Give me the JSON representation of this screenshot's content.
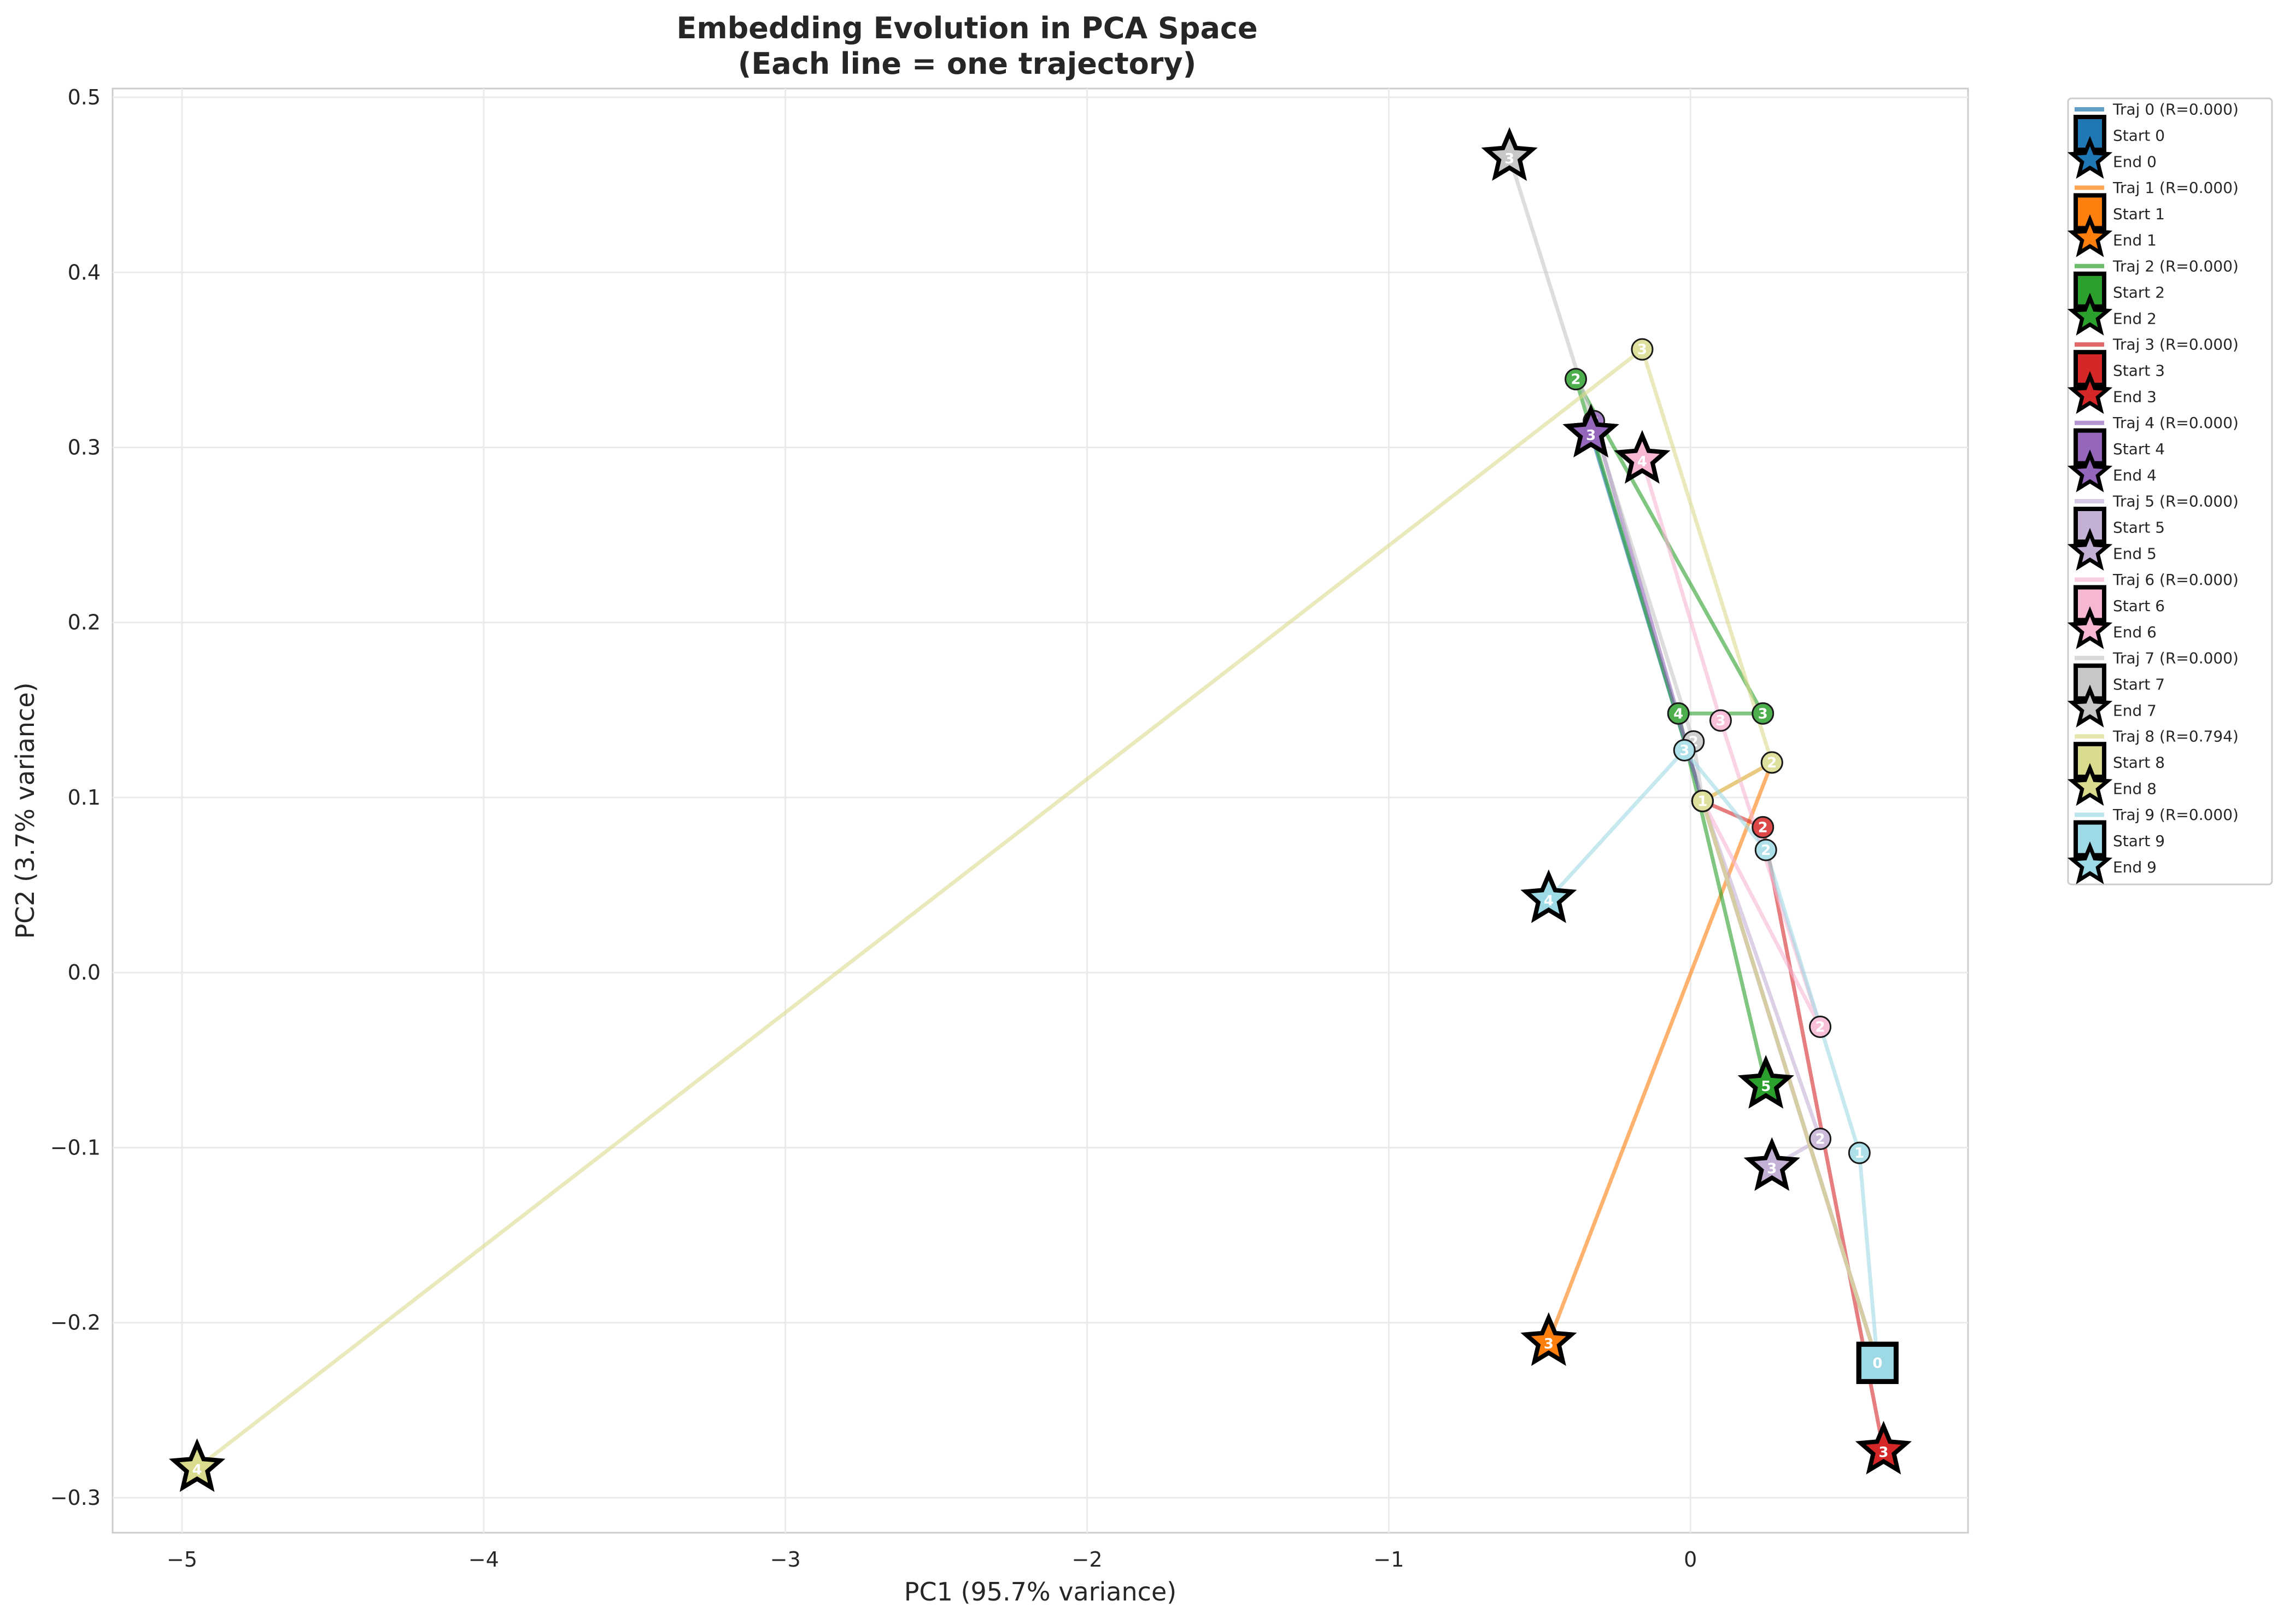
{
  "chart_data": {
    "type": "line",
    "title": "Embedding Evolution in PCA Space",
    "subtitle": "(Each line = one trajectory)",
    "xlabel": "PC1 (95.7% variance)",
    "ylabel": "PC2 (3.7% variance)",
    "xlim": [
      -5.23,
      0.92
    ],
    "ylim": [
      -0.32,
      0.505
    ],
    "xticks": [
      -5,
      -4,
      -3,
      -2,
      -1,
      0
    ],
    "xtick_labels": [
      "−5",
      "−4",
      "−3",
      "−2",
      "−1",
      "0"
    ],
    "yticks": [
      -0.3,
      -0.2,
      -0.1,
      0.0,
      0.1,
      0.2,
      0.3,
      0.4,
      0.5
    ],
    "ytick_labels": [
      "−0.3",
      "−0.2",
      "−0.1",
      "0.0",
      "0.1",
      "0.2",
      "0.3",
      "0.4",
      "0.5"
    ],
    "grid": true,
    "legend_position": "outside-right",
    "series": [
      {
        "name": "Traj 0 (R=0.000)",
        "start_label": "Start 0",
        "end_label": "End 0",
        "color": "#1f77b4",
        "points": [
          [
            0.62,
            -0.223
          ],
          [
            0.04,
            0.098
          ],
          [
            -0.33,
            0.308
          ]
        ]
      },
      {
        "name": "Traj 1 (R=0.000)",
        "start_label": "Start 1",
        "end_label": "End 1",
        "color": "#ff7f0e",
        "points": [
          [
            0.62,
            -0.223
          ],
          [
            0.04,
            0.098
          ],
          [
            0.27,
            0.12
          ],
          [
            -0.47,
            -0.211
          ]
        ]
      },
      {
        "name": "Traj 2 (R=0.000)",
        "start_label": "Start 2",
        "end_label": "End 2",
        "color": "#2ca02c",
        "points": [
          [
            0.62,
            -0.223
          ],
          [
            0.04,
            0.098
          ],
          [
            -0.38,
            0.339
          ],
          [
            0.24,
            0.148
          ],
          [
            -0.04,
            0.148
          ],
          [
            0.25,
            -0.064
          ]
        ]
      },
      {
        "name": "Traj 3 (R=0.000)",
        "start_label": "Start 3",
        "end_label": "End 3",
        "color": "#d62728",
        "points": [
          [
            0.62,
            -0.223
          ],
          [
            0.04,
            0.098
          ],
          [
            0.24,
            0.083
          ],
          [
            0.64,
            -0.273
          ]
        ]
      },
      {
        "name": "Traj 4 (R=0.000)",
        "start_label": "Start 4",
        "end_label": "End 4",
        "color": "#9467bd",
        "points": [
          [
            0.62,
            -0.223
          ],
          [
            0.04,
            0.098
          ],
          [
            -0.32,
            0.315
          ],
          [
            -0.33,
            0.308
          ]
        ]
      },
      {
        "name": "Traj 5 (R=0.000)",
        "start_label": "Start 5",
        "end_label": "End 5",
        "color": "#c5b0d5",
        "points": [
          [
            0.62,
            -0.223
          ],
          [
            0.04,
            0.098
          ],
          [
            0.43,
            -0.095
          ],
          [
            0.27,
            -0.111
          ]
        ]
      },
      {
        "name": "Traj 6 (R=0.000)",
        "start_label": "Start 6",
        "end_label": "End 6",
        "color": "#f7b6d2",
        "points": [
          [
            0.62,
            -0.223
          ],
          [
            0.04,
            0.098
          ],
          [
            0.43,
            -0.031
          ],
          [
            0.1,
            0.144
          ],
          [
            -0.16,
            0.293
          ]
        ]
      },
      {
        "name": "Traj 7 (R=0.000)",
        "start_label": "Start 7",
        "end_label": "End 7",
        "color": "#c7c7c7",
        "points": [
          [
            0.62,
            -0.223
          ],
          [
            0.04,
            0.098
          ],
          [
            0.01,
            0.132
          ],
          [
            -0.6,
            0.466
          ]
        ]
      },
      {
        "name": "Traj 8 (R=0.794)",
        "start_label": "Start 8",
        "end_label": "End 8",
        "color": "#dbdb8d",
        "points": [
          [
            0.62,
            -0.223
          ],
          [
            0.04,
            0.098
          ],
          [
            0.27,
            0.12
          ],
          [
            -0.16,
            0.356
          ],
          [
            -4.95,
            -0.283
          ]
        ]
      },
      {
        "name": "Traj 9 (R=0.000)",
        "start_label": "Start 9",
        "end_label": "End 9",
        "color": "#9edae5",
        "points": [
          [
            0.62,
            -0.223
          ],
          [
            0.56,
            -0.103
          ],
          [
            0.25,
            0.07
          ],
          [
            -0.02,
            0.127
          ],
          [
            -0.47,
            0.042
          ]
        ]
      }
    ]
  }
}
